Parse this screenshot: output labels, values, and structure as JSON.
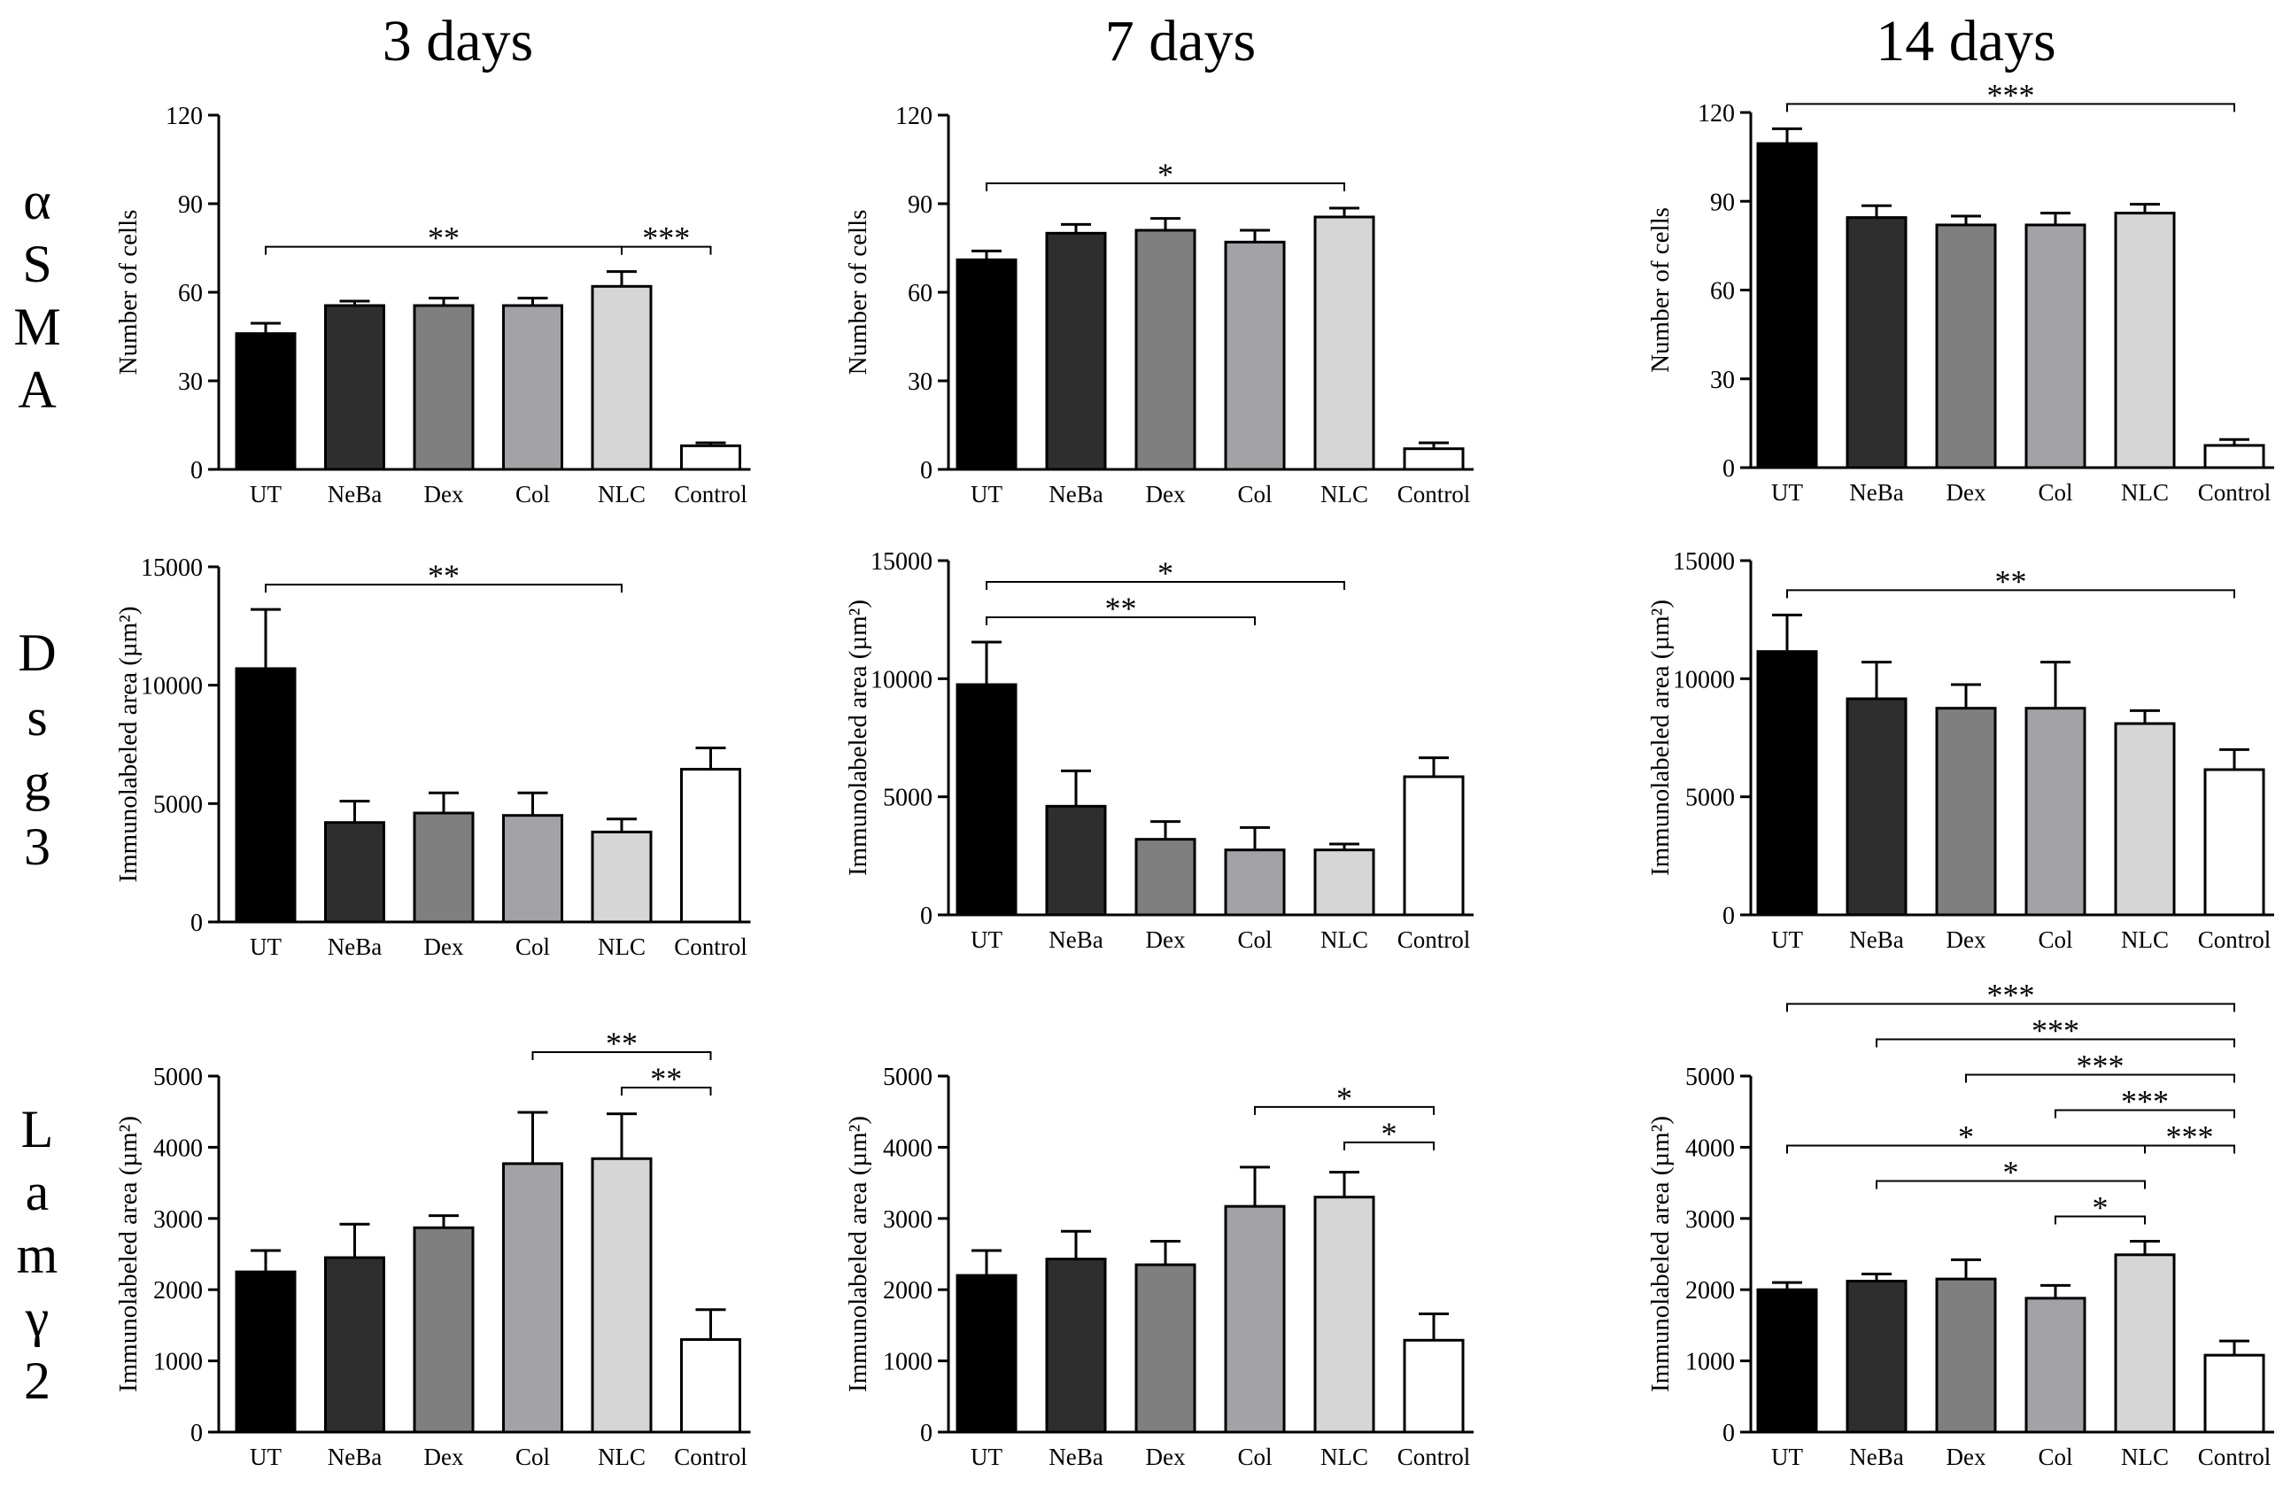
{
  "columns": [
    "3 days",
    "7 days",
    "14 days"
  ],
  "rows": [
    {
      "name": "αSMA",
      "letters": [
        "α",
        "S",
        "M",
        "A"
      ]
    },
    {
      "name": "Dsg3",
      "letters": [
        "D",
        "s",
        "g",
        "3"
      ]
    },
    {
      "name": "Lamγ2",
      "letters": [
        "L",
        "a",
        "m",
        "γ",
        "2"
      ]
    }
  ],
  "colors": {
    "UT": "#000000",
    "NeBa": "#2e2e2e",
    "Dex": "#7f7f7f",
    "Col": "#a3a3a7",
    "NLC": "#d6d6d6",
    "Control": "#ffffff"
  },
  "chart_data": [
    {
      "type": "bar",
      "id": "asma-3d",
      "row": 0,
      "col": 0,
      "title": "3 days",
      "categories": [
        "UT",
        "NeBa",
        "Dex",
        "Col",
        "NLC",
        "Control"
      ],
      "values": [
        46,
        55.5,
        55.5,
        55.5,
        62,
        8
      ],
      "errors": [
        3.5,
        1.5,
        2.5,
        2.5,
        5,
        1
      ],
      "ylabel": "Number of cells",
      "ylim": [
        0,
        120
      ],
      "yticks": [
        "0",
        "30",
        "60",
        "90",
        "120"
      ],
      "significance": [
        {
          "from": "UT",
          "to": "NLC",
          "label": "**",
          "level": 0
        },
        {
          "from": "NLC",
          "to": "Control",
          "label": "***",
          "level": 0
        }
      ]
    },
    {
      "type": "bar",
      "id": "asma-7d",
      "row": 0,
      "col": 1,
      "title": "7 days",
      "categories": [
        "UT",
        "NeBa",
        "Dex",
        "Col",
        "NLC",
        "Control"
      ],
      "values": [
        71,
        80,
        81,
        77,
        85.5,
        7
      ],
      "errors": [
        3,
        3,
        4,
        4,
        3,
        2
      ],
      "ylabel": "Number of cells",
      "ylim": [
        0,
        120
      ],
      "yticks": [
        "0",
        "30",
        "60",
        "90",
        "120"
      ],
      "significance": [
        {
          "from": "UT",
          "to": "NLC",
          "label": "*",
          "level": 0
        }
      ]
    },
    {
      "type": "bar",
      "id": "asma-14d",
      "row": 0,
      "col": 2,
      "title": "14 days",
      "categories": [
        "UT",
        "NeBa",
        "Dex",
        "Col",
        "NLC",
        "Control"
      ],
      "values": [
        109.5,
        84.5,
        82,
        82,
        86,
        7.5
      ],
      "errors": [
        5,
        4,
        3,
        4,
        3,
        2
      ],
      "ylabel": "Number of cells",
      "ylim": [
        0,
        120
      ],
      "yticks": [
        "0",
        "30",
        "60",
        "90",
        "120"
      ],
      "significance": [
        {
          "from": "UT",
          "to": "Control",
          "label": "***",
          "level": 0
        }
      ]
    },
    {
      "type": "bar",
      "id": "dsg3-3d",
      "row": 1,
      "col": 0,
      "title": "3 days",
      "categories": [
        "UT",
        "NeBa",
        "Dex",
        "Col",
        "NLC",
        "Control"
      ],
      "values": [
        10700,
        4200,
        4600,
        4500,
        3800,
        6450
      ],
      "errors": [
        2500,
        900,
        850,
        950,
        550,
        900
      ],
      "ylabel": "Immunolabeled area (µm²)",
      "ylim": [
        0,
        15000
      ],
      "yticks": [
        "0",
        "5000",
        "10000",
        "15000"
      ],
      "significance": [
        {
          "from": "UT",
          "to": "NLC",
          "label": "**",
          "level": 0
        }
      ]
    },
    {
      "type": "bar",
      "id": "dsg3-7d",
      "row": 1,
      "col": 1,
      "title": "7 days",
      "categories": [
        "UT",
        "NeBa",
        "Dex",
        "Col",
        "NLC",
        "Control"
      ],
      "values": [
        9750,
        4600,
        3200,
        2750,
        2750,
        5850
      ],
      "errors": [
        1800,
        1500,
        750,
        950,
        250,
        800
      ],
      "ylabel": "Immunolabeled area (µm²)",
      "ylim": [
        0,
        15000
      ],
      "yticks": [
        "0",
        "5000",
        "10000",
        "15000"
      ],
      "significance": [
        {
          "from": "UT",
          "to": "NLC",
          "label": "*",
          "level": 1
        },
        {
          "from": "UT",
          "to": "Col",
          "label": "**",
          "level": 0
        }
      ]
    },
    {
      "type": "bar",
      "id": "dsg3-14d",
      "row": 1,
      "col": 2,
      "title": "14 days",
      "categories": [
        "UT",
        "NeBa",
        "Dex",
        "Col",
        "NLC",
        "Control"
      ],
      "values": [
        11150,
        9150,
        8750,
        8750,
        8100,
        6150
      ],
      "errors": [
        1550,
        1550,
        1000,
        1950,
        550,
        850
      ],
      "ylabel": "Immunolabeled area (µm²)",
      "ylim": [
        0,
        15000
      ],
      "yticks": [
        "0",
        "5000",
        "10000",
        "15000"
      ],
      "significance": [
        {
          "from": "UT",
          "to": "Control",
          "label": "**",
          "level": 0
        }
      ]
    },
    {
      "type": "bar",
      "id": "lamg2-3d",
      "row": 2,
      "col": 0,
      "title": "3 days",
      "categories": [
        "UT",
        "NeBa",
        "Dex",
        "Col",
        "NLC",
        "Control"
      ],
      "values": [
        2250,
        2450,
        2870,
        3770,
        3840,
        1300
      ],
      "errors": [
        300,
        470,
        170,
        720,
        630,
        420
      ],
      "ylabel": "Immunolabeled area (µm²)",
      "ylim": [
        0,
        5000
      ],
      "yticks": [
        "0",
        "1000",
        "2000",
        "3000",
        "4000",
        "5000"
      ],
      "significance": [
        {
          "from": "Col",
          "to": "Control",
          "label": "**",
          "level": 1
        },
        {
          "from": "NLC",
          "to": "Control",
          "label": "**",
          "level": 0
        }
      ]
    },
    {
      "type": "bar",
      "id": "lamg2-7d",
      "row": 2,
      "col": 1,
      "title": "7 days",
      "categories": [
        "UT",
        "NeBa",
        "Dex",
        "Col",
        "NLC",
        "Control"
      ],
      "values": [
        2200,
        2430,
        2350,
        3170,
        3300,
        1290
      ],
      "errors": [
        350,
        390,
        330,
        550,
        350,
        370
      ],
      "ylabel": "Immunolabeled area (µm²)",
      "ylim": [
        0,
        5000
      ],
      "yticks": [
        "0",
        "1000",
        "2000",
        "3000",
        "4000",
        "5000"
      ],
      "significance": [
        {
          "from": "Col",
          "to": "Control",
          "label": "*",
          "level": 1
        },
        {
          "from": "NLC",
          "to": "Control",
          "label": "*",
          "level": 0
        }
      ]
    },
    {
      "type": "bar",
      "id": "lamg2-14d",
      "row": 2,
      "col": 2,
      "title": "14 days",
      "categories": [
        "UT",
        "NeBa",
        "Dex",
        "Col",
        "NLC",
        "Control"
      ],
      "values": [
        2000,
        2120,
        2150,
        1880,
        2490,
        1080
      ],
      "errors": [
        100,
        100,
        270,
        180,
        190,
        200
      ],
      "ylabel": "Immunolabeled area (µm²)",
      "ylim": [
        0,
        5000
      ],
      "yticks": [
        "0",
        "1000",
        "2000",
        "3000",
        "4000",
        "5000"
      ],
      "significance": [
        {
          "from": "Col",
          "to": "NLC",
          "label": "*",
          "level": 0
        },
        {
          "from": "NeBa",
          "to": "NLC",
          "label": "*",
          "level": 1
        },
        {
          "from": "UT",
          "to": "NLC",
          "label": "*",
          "level": 2
        },
        {
          "from": "NLC",
          "to": "Control",
          "label": "***",
          "level": 2
        },
        {
          "from": "Col",
          "to": "Control",
          "label": "***",
          "level": 3
        },
        {
          "from": "Dex",
          "to": "Control",
          "label": "***",
          "level": 4
        },
        {
          "from": "NeBa",
          "to": "Control",
          "label": "***",
          "level": 5
        },
        {
          "from": "UT",
          "to": "Control",
          "label": "***",
          "level": 6
        }
      ]
    }
  ]
}
